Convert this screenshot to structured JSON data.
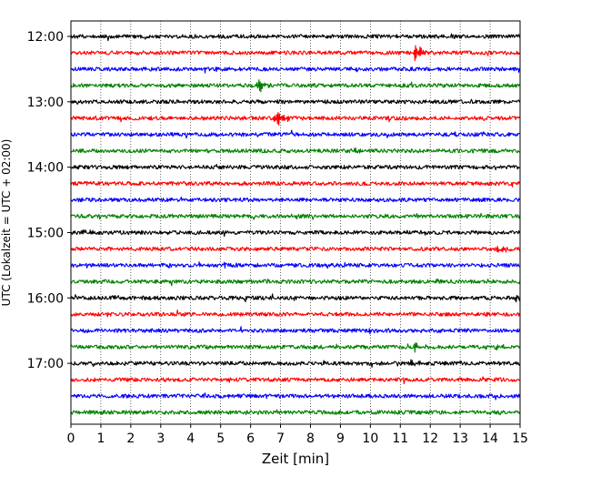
{
  "chart_data": {
    "type": "line",
    "subtype": "helicorder",
    "xlabel": "Zeit  [min]",
    "ylabel": "UTC (Lokalzeit = UTC + 02:00)",
    "xlim": [
      0,
      15
    ],
    "x_ticks": [
      0,
      1,
      2,
      3,
      4,
      5,
      6,
      7,
      8,
      9,
      10,
      11,
      12,
      13,
      14,
      15
    ],
    "y_ticks": [
      "12:00",
      "13:00",
      "14:00",
      "15:00",
      "16:00",
      "17:00"
    ],
    "grid": "vertical-dotted",
    "row_interval_min": 15,
    "colors": [
      "#000000",
      "#ff0000",
      "#0000ff",
      "#008000"
    ],
    "rows": [
      {
        "start": "12:00",
        "color": "#000000",
        "events": []
      },
      {
        "start": "12:15",
        "color": "#ff0000",
        "events": [
          {
            "t": 11.5,
            "amp": 1.0
          }
        ]
      },
      {
        "start": "12:30",
        "color": "#0000ff",
        "events": []
      },
      {
        "start": "12:45",
        "color": "#008000",
        "events": [
          {
            "t": 6.25,
            "amp": 0.85
          }
        ]
      },
      {
        "start": "13:00",
        "color": "#000000",
        "events": []
      },
      {
        "start": "13:15",
        "color": "#ff0000",
        "events": [
          {
            "t": 6.85,
            "amp": 1.0
          }
        ]
      },
      {
        "start": "13:30",
        "color": "#0000ff",
        "events": []
      },
      {
        "start": "13:45",
        "color": "#008000",
        "events": [
          {
            "t": 9.4,
            "amp": 0.25
          }
        ]
      },
      {
        "start": "14:00",
        "color": "#000000",
        "events": []
      },
      {
        "start": "14:15",
        "color": "#ff0000",
        "events": []
      },
      {
        "start": "14:30",
        "color": "#0000ff",
        "events": []
      },
      {
        "start": "14:45",
        "color": "#008000",
        "events": [
          {
            "t": 7.45,
            "amp": 0.3
          }
        ]
      },
      {
        "start": "15:00",
        "color": "#000000",
        "events": [
          {
            "t": 0.35,
            "amp": 0.35
          }
        ]
      },
      {
        "start": "15:15",
        "color": "#ff0000",
        "events": [
          {
            "t": 14.25,
            "amp": 0.25
          }
        ]
      },
      {
        "start": "15:30",
        "color": "#0000ff",
        "events": [
          {
            "t": 5.15,
            "amp": 0.25
          }
        ]
      },
      {
        "start": "15:45",
        "color": "#008000",
        "events": []
      },
      {
        "start": "16:00",
        "color": "#000000",
        "events": [
          {
            "t": 14.9,
            "amp": 0.6
          },
          {
            "t": 1.4,
            "amp": 0.15
          }
        ]
      },
      {
        "start": "16:15",
        "color": "#ff0000",
        "events": []
      },
      {
        "start": "16:30",
        "color": "#0000ff",
        "events": [
          {
            "t": 10.0,
            "amp": 0.2
          }
        ]
      },
      {
        "start": "16:45",
        "color": "#008000",
        "events": [
          {
            "t": 11.5,
            "amp": 0.5
          },
          {
            "t": 14.2,
            "amp": 0.25
          }
        ]
      },
      {
        "start": "17:00",
        "color": "#000000",
        "events": [
          {
            "t": 11.35,
            "amp": 0.3
          }
        ]
      },
      {
        "start": "17:15",
        "color": "#ff0000",
        "events": [
          {
            "t": 5.2,
            "amp": 0.25
          }
        ]
      },
      {
        "start": "17:30",
        "color": "#0000ff",
        "events": []
      },
      {
        "start": "17:45",
        "color": "#008000",
        "events": [
          {
            "t": 5.8,
            "amp": 0.1
          }
        ]
      }
    ]
  }
}
